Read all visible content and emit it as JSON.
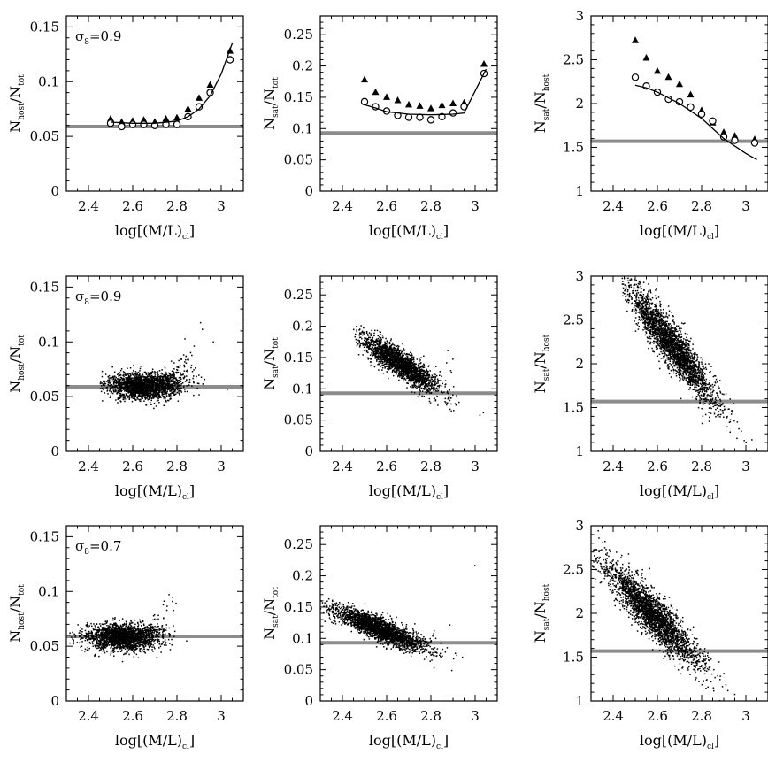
{
  "figure": {
    "background": "#ffffff",
    "ink": "#000000",
    "reference_line_color": "#8c8c8c"
  },
  "chart_data": [
    {
      "id": "p1",
      "type": "scatter",
      "row": 0,
      "col": 0,
      "annotation": "σ8=0.9",
      "ylabel_main": "N",
      "ylabel_sub1": "host",
      "ylabel_sub2": "tot",
      "ytype": "host_tot",
      "xlabel": "log[(M/L)cl]",
      "xlim": [
        2.3,
        3.1
      ],
      "ylim": [
        0,
        0.16
      ],
      "xticks": [
        2.4,
        2.6,
        2.8,
        3.0
      ],
      "xtick_labels": [
        "2.4",
        "2.6",
        "2.8",
        "3"
      ],
      "yticks": [
        0,
        0.05,
        0.1,
        0.15
      ],
      "ytick_labels": [
        "0",
        "0.05",
        "0.1",
        "0.15"
      ],
      "hline": 0.059,
      "series": [
        {
          "name": "triangles",
          "marker": "triangle",
          "x": [
            2.5,
            2.55,
            2.6,
            2.65,
            2.7,
            2.75,
            2.8,
            2.85,
            2.9,
            2.95,
            3.04
          ],
          "y": [
            0.066,
            0.063,
            0.064,
            0.065,
            0.063,
            0.066,
            0.067,
            0.075,
            0.085,
            0.097,
            0.128
          ]
        },
        {
          "name": "circles",
          "marker": "circle",
          "x": [
            2.5,
            2.55,
            2.6,
            2.65,
            2.7,
            2.75,
            2.8,
            2.85,
            2.9,
            2.95,
            3.04
          ],
          "y": [
            0.062,
            0.059,
            0.061,
            0.061,
            0.06,
            0.061,
            0.061,
            0.068,
            0.077,
            0.09,
            0.12
          ]
        },
        {
          "name": "model",
          "marker": "line",
          "x": [
            2.5,
            2.6,
            2.7,
            2.8,
            2.85,
            2.9,
            2.95,
            3.0,
            3.05
          ],
          "y": [
            0.063,
            0.062,
            0.062,
            0.064,
            0.068,
            0.075,
            0.087,
            0.107,
            0.135
          ]
        }
      ]
    },
    {
      "id": "p2",
      "type": "scatter",
      "row": 0,
      "col": 1,
      "annotation": "",
      "ylabel_main": "N",
      "ylabel_sub1": "sat",
      "ylabel_sub2": "tot",
      "ytype": "sat_tot",
      "xlabel": "log[(M/L)cl]",
      "xlim": [
        2.3,
        3.1
      ],
      "ylim": [
        0,
        0.28
      ],
      "xticks": [
        2.4,
        2.6,
        2.8,
        3.0
      ],
      "xtick_labels": [
        "2.4",
        "2.6",
        "2.8",
        "3"
      ],
      "yticks": [
        0,
        0.05,
        0.1,
        0.15,
        0.2,
        0.25
      ],
      "ytick_labels": [
        "0",
        "0.05",
        "0.1",
        "0.15",
        "0.2",
        "0.25"
      ],
      "hline": 0.093,
      "series": [
        {
          "name": "triangles",
          "marker": "triangle",
          "x": [
            2.5,
            2.55,
            2.6,
            2.65,
            2.7,
            2.75,
            2.8,
            2.85,
            2.9,
            2.95,
            3.04
          ],
          "y": [
            0.178,
            0.158,
            0.15,
            0.145,
            0.138,
            0.136,
            0.132,
            0.137,
            0.14,
            0.141,
            0.203
          ]
        },
        {
          "name": "circles",
          "marker": "circle",
          "x": [
            2.5,
            2.55,
            2.6,
            2.65,
            2.7,
            2.75,
            2.8,
            2.85,
            2.9,
            2.95,
            3.04
          ],
          "y": [
            0.143,
            0.135,
            0.128,
            0.121,
            0.118,
            0.118,
            0.114,
            0.119,
            0.125,
            0.135,
            0.188
          ]
        },
        {
          "name": "model",
          "marker": "line",
          "x": [
            2.5,
            2.55,
            2.6,
            2.7,
            2.8,
            2.9,
            2.95,
            3.05
          ],
          "y": [
            0.138,
            0.133,
            0.127,
            0.123,
            0.122,
            0.123,
            0.125,
            0.195
          ]
        }
      ]
    },
    {
      "id": "p3",
      "type": "scatter",
      "row": 0,
      "col": 2,
      "annotation": "",
      "ylabel_main": "N",
      "ylabel_sub1": "sat",
      "ylabel_sub2": "host",
      "ytype": "sat_host",
      "xlabel": "log[(M/L)cl]",
      "xlim": [
        2.3,
        3.1
      ],
      "ylim": [
        1,
        3
      ],
      "xticks": [
        2.4,
        2.6,
        2.8,
        3.0
      ],
      "xtick_labels": [
        "2.4",
        "2.6",
        "2.8",
        "3"
      ],
      "yticks": [
        1,
        1.5,
        2,
        2.5,
        3
      ],
      "ytick_labels": [
        "1",
        "1.5",
        "2",
        "2.5",
        "3"
      ],
      "hline": 1.57,
      "series": [
        {
          "name": "triangles",
          "marker": "triangle",
          "x": [
            2.5,
            2.55,
            2.6,
            2.65,
            2.7,
            2.75,
            2.8,
            2.85,
            2.9,
            2.95,
            3.04
          ],
          "y": [
            2.72,
            2.52,
            2.37,
            2.3,
            2.22,
            2.1,
            1.92,
            1.78,
            1.67,
            1.63,
            1.59
          ]
        },
        {
          "name": "circles",
          "marker": "circle",
          "x": [
            2.5,
            2.55,
            2.6,
            2.65,
            2.7,
            2.75,
            2.8,
            2.85,
            2.9,
            2.95,
            3.04
          ],
          "y": [
            2.3,
            2.2,
            2.13,
            2.05,
            2.02,
            1.96,
            1.88,
            1.8,
            1.62,
            1.58,
            1.55
          ]
        },
        {
          "name": "model",
          "marker": "line",
          "x": [
            2.5,
            2.55,
            2.6,
            2.7,
            2.8,
            2.9,
            3.0,
            3.05
          ],
          "y": [
            2.21,
            2.18,
            2.13,
            2.0,
            1.83,
            1.6,
            1.43,
            1.36
          ]
        }
      ]
    },
    {
      "id": "p4",
      "type": "scatter",
      "row": 1,
      "col": 0,
      "annotation": "σ8=0.9",
      "ylabel_main": "N",
      "ylabel_sub1": "host",
      "ylabel_sub2": "tot",
      "ytype": "host_tot",
      "xlabel": "log[(M/L)cl]",
      "xlim": [
        2.3,
        3.1
      ],
      "ylim": [
        0,
        0.16
      ],
      "xticks": [
        2.4,
        2.6,
        2.8,
        3.0
      ],
      "xtick_labels": [
        "2.4",
        "2.6",
        "2.8",
        "3"
      ],
      "yticks": [
        0,
        0.05,
        0.1,
        0.15
      ],
      "ytick_labels": [
        "0",
        "0.05",
        "0.1",
        "0.15"
      ],
      "hline": 0.059,
      "cloud": {
        "count": 2200,
        "seed": 11,
        "mode": "host",
        "x_mean": 2.66,
        "x_sd": 0.085,
        "x_min": 2.45,
        "x_max": 3.05,
        "y_center": 0.06,
        "y_sd": 0.006,
        "tail_start": 2.75,
        "tail_slope": 0.32,
        "tail_frac": 0.35
      }
    },
    {
      "id": "p5",
      "type": "scatter",
      "row": 1,
      "col": 1,
      "annotation": "",
      "ylabel_main": "N",
      "ylabel_sub1": "sat",
      "ylabel_sub2": "tot",
      "ytype": "sat_tot",
      "xlabel": "log[(M/L)cl]",
      "xlim": [
        2.3,
        3.1
      ],
      "ylim": [
        0,
        0.28
      ],
      "xticks": [
        2.4,
        2.6,
        2.8,
        3.0
      ],
      "xtick_labels": [
        "2.4",
        "2.6",
        "2.8",
        "3"
      ],
      "yticks": [
        0,
        0.05,
        0.1,
        0.15,
        0.2,
        0.25
      ],
      "ytick_labels": [
        "0",
        "0.05",
        "0.1",
        "0.15",
        "0.2",
        "0.25"
      ],
      "hline": 0.093,
      "cloud": {
        "count": 2200,
        "seed": 23,
        "mode": "sat",
        "x_mean": 2.66,
        "x_sd": 0.085,
        "x_min": 2.45,
        "x_max": 3.05,
        "y_at_ref": 0.14,
        "y_ref_x": 2.66,
        "slope": -0.22,
        "y_sd": 0.011,
        "tail_start": 2.8,
        "tail_slope": 0.3,
        "tail_frac": 0.2
      }
    },
    {
      "id": "p6",
      "type": "scatter",
      "row": 1,
      "col": 2,
      "annotation": "",
      "ylabel_main": "N",
      "ylabel_sub1": "sat",
      "ylabel_sub2": "host",
      "ytype": "sat_host",
      "xlabel": "log[(M/L)cl]",
      "xlim": [
        2.3,
        3.1
      ],
      "ylim": [
        1,
        3
      ],
      "xticks": [
        2.4,
        2.6,
        2.8,
        3.0
      ],
      "xtick_labels": [
        "2.4",
        "2.6",
        "2.8",
        "3"
      ],
      "yticks": [
        1,
        1.5,
        2,
        2.5,
        3
      ],
      "ytick_labels": [
        "1",
        "1.5",
        "2",
        "2.5",
        "3"
      ],
      "hline": 1.57,
      "cloud": {
        "count": 2600,
        "seed": 37,
        "mode": "linear",
        "x_mean": 2.67,
        "x_sd": 0.1,
        "x_min": 2.44,
        "x_max": 3.1,
        "y_at_ref": 2.2,
        "y_ref_x": 2.67,
        "slope": -3.1,
        "y_sd": 0.13
      }
    },
    {
      "id": "p7",
      "type": "scatter",
      "row": 2,
      "col": 0,
      "annotation": "σ8=0.7",
      "ylabel_main": "N",
      "ylabel_sub1": "host",
      "ylabel_sub2": "tot",
      "ytype": "host_tot",
      "xlabel": "log[(M/L)cl]",
      "xlim": [
        2.3,
        3.1
      ],
      "ylim": [
        0,
        0.16
      ],
      "xticks": [
        2.4,
        2.6,
        2.8,
        3.0
      ],
      "xtick_labels": [
        "2.4",
        "2.6",
        "2.8",
        "3"
      ],
      "yticks": [
        0,
        0.05,
        0.1,
        0.15
      ],
      "ytick_labels": [
        "0",
        "0.05",
        "0.1",
        "0.15"
      ],
      "hline": 0.059,
      "cloud": {
        "count": 2200,
        "seed": 41,
        "mode": "host",
        "x_mean": 2.56,
        "x_sd": 0.085,
        "x_min": 2.3,
        "x_max": 2.95,
        "y_center": 0.058,
        "y_sd": 0.006,
        "tail_start": 2.65,
        "tail_slope": 0.3,
        "tail_frac": 0.25
      }
    },
    {
      "id": "p8",
      "type": "scatter",
      "row": 2,
      "col": 1,
      "annotation": "",
      "ylabel_main": "N",
      "ylabel_sub1": "sat",
      "ylabel_sub2": "tot",
      "ytype": "sat_tot",
      "xlabel": "log[(M/L)cl]",
      "xlim": [
        2.3,
        3.1
      ],
      "ylim": [
        0,
        0.28
      ],
      "xticks": [
        2.4,
        2.6,
        2.8,
        3.0
      ],
      "xtick_labels": [
        "2.4",
        "2.6",
        "2.8",
        "3"
      ],
      "yticks": [
        0,
        0.05,
        0.1,
        0.15,
        0.2,
        0.25
      ],
      "ytick_labels": [
        "0",
        "0.05",
        "0.1",
        "0.15",
        "0.2",
        "0.25"
      ],
      "hline": 0.093,
      "cloud": {
        "count": 2400,
        "seed": 53,
        "mode": "sat",
        "x_mean": 2.57,
        "x_sd": 0.1,
        "x_min": 2.3,
        "x_max": 3.0,
        "y_at_ref": 0.115,
        "y_ref_x": 2.57,
        "slope": -0.14,
        "y_sd": 0.009,
        "tail_start": 2.75,
        "tail_slope": 0.25,
        "tail_frac": 0.15
      }
    },
    {
      "id": "p9",
      "type": "scatter",
      "row": 2,
      "col": 2,
      "annotation": "",
      "ylabel_main": "N",
      "ylabel_sub1": "sat",
      "ylabel_sub2": "host",
      "ytype": "sat_host",
      "xlabel": "log[(M/L)cl]",
      "xlim": [
        2.3,
        3.1
      ],
      "ylim": [
        1,
        3
      ],
      "xticks": [
        2.4,
        2.6,
        2.8,
        3.0
      ],
      "xtick_labels": [
        "2.4",
        "2.6",
        "2.8",
        "3"
      ],
      "yticks": [
        1,
        1.5,
        2,
        2.5,
        3
      ],
      "ytick_labels": [
        "1",
        "1.5",
        "2",
        "2.5",
        "3"
      ],
      "hline": 1.57,
      "cloud": {
        "count": 2600,
        "seed": 67,
        "mode": "linear",
        "x_mean": 2.58,
        "x_sd": 0.11,
        "x_min": 2.3,
        "x_max": 3.05,
        "y_at_ref": 1.98,
        "y_ref_x": 2.58,
        "slope": -2.5,
        "y_sd": 0.12
      }
    }
  ]
}
